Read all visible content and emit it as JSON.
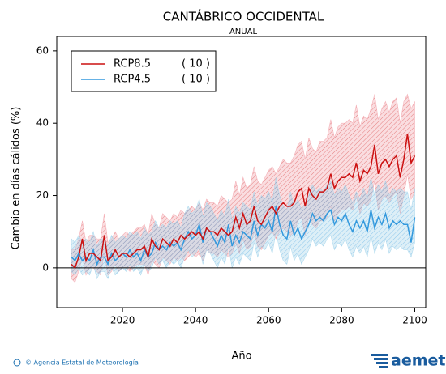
{
  "chart_data": {
    "type": "line",
    "title": "CANTÁBRICO OCCIDENTAL",
    "subtitle": "ANUAL",
    "xlabel": "Año",
    "ylabel": "Cambio en días cálidos (%)",
    "credit": "© Agencia Estatal de Meteorología",
    "logo": "aemet",
    "xlim": [
      2002,
      2103
    ],
    "xticks": [
      2020,
      2040,
      2060,
      2080,
      2100
    ],
    "ylim": [
      -11,
      64
    ],
    "yticks": [
      0,
      20,
      40,
      60
    ],
    "zero_line": true,
    "legend": "upper left",
    "x": [
      2006,
      2007,
      2008,
      2009,
      2010,
      2011,
      2012,
      2013,
      2014,
      2015,
      2016,
      2017,
      2018,
      2019,
      2020,
      2021,
      2022,
      2023,
      2024,
      2025,
      2026,
      2027,
      2028,
      2029,
      2030,
      2031,
      2032,
      2033,
      2034,
      2035,
      2036,
      2037,
      2038,
      2039,
      2040,
      2041,
      2042,
      2043,
      2044,
      2045,
      2046,
      2047,
      2048,
      2049,
      2050,
      2051,
      2052,
      2053,
      2054,
      2055,
      2056,
      2057,
      2058,
      2059,
      2060,
      2061,
      2062,
      2063,
      2064,
      2065,
      2066,
      2067,
      2068,
      2069,
      2070,
      2071,
      2072,
      2073,
      2074,
      2075,
      2076,
      2077,
      2078,
      2079,
      2080,
      2081,
      2082,
      2083,
      2084,
      2085,
      2086,
      2087,
      2088,
      2089,
      2090,
      2091,
      2092,
      2093,
      2094,
      2095,
      2096,
      2097,
      2098,
      2099,
      2100
    ],
    "series": [
      {
        "name": "RCP8.5",
        "count_label": "( 10 )",
        "color": "#cc1111",
        "band_color": "#f2a0a8",
        "values": [
          1,
          0,
          3,
          8,
          2,
          4,
          4,
          3,
          2,
          9,
          2,
          3,
          5,
          3,
          4,
          4,
          3,
          4,
          5,
          5,
          6,
          3,
          8,
          6,
          5,
          8,
          7,
          6,
          8,
          7,
          9,
          8,
          9,
          10,
          9,
          10,
          8,
          11,
          10,
          10,
          9,
          11,
          10,
          9,
          10,
          14,
          11,
          15,
          12,
          13,
          17,
          13,
          12,
          14,
          16,
          17,
          15,
          17,
          18,
          17,
          17,
          18,
          21,
          22,
          17,
          22,
          20,
          19,
          21,
          21,
          22,
          26,
          22,
          24,
          25,
          25,
          26,
          25,
          29,
          24,
          27,
          26,
          28,
          34,
          26,
          29,
          30,
          28,
          30,
          31,
          25,
          30,
          37,
          29,
          31
        ],
        "lower": [
          -3,
          -4,
          -1,
          3,
          -2,
          0,
          0,
          -1,
          -2,
          4,
          -2,
          -1,
          1,
          -1,
          0,
          0,
          -1,
          0,
          1,
          1,
          1,
          -2,
          2,
          1,
          0,
          3,
          2,
          1,
          3,
          2,
          3,
          2,
          3,
          4,
          3,
          4,
          2,
          5,
          4,
          4,
          3,
          5,
          4,
          3,
          4,
          7,
          4,
          8,
          5,
          6,
          10,
          6,
          5,
          7,
          9,
          10,
          8,
          10,
          11,
          10,
          9,
          10,
          13,
          14,
          9,
          14,
          12,
          11,
          13,
          13,
          14,
          17,
          13,
          15,
          16,
          16,
          17,
          16,
          20,
          15,
          18,
          17,
          19,
          24,
          16,
          19,
          20,
          18,
          20,
          21,
          15,
          20,
          26,
          19,
          21
        ],
        "upper": [
          5,
          5,
          8,
          13,
          7,
          9,
          9,
          8,
          8,
          15,
          7,
          8,
          10,
          8,
          9,
          10,
          9,
          10,
          11,
          11,
          12,
          9,
          15,
          12,
          11,
          15,
          14,
          13,
          15,
          14,
          16,
          15,
          16,
          17,
          16,
          18,
          16,
          19,
          18,
          18,
          17,
          20,
          19,
          18,
          19,
          24,
          20,
          25,
          22,
          23,
          28,
          24,
          23,
          25,
          27,
          28,
          26,
          28,
          30,
          29,
          29,
          31,
          34,
          35,
          30,
          36,
          33,
          32,
          35,
          35,
          36,
          41,
          36,
          39,
          40,
          40,
          41,
          40,
          45,
          39,
          42,
          41,
          44,
          48,
          41,
          44,
          46,
          43,
          46,
          47,
          40,
          46,
          48,
          44,
          46
        ]
      },
      {
        "name": "RCP4.5",
        "count_label": "( 10 )",
        "color": "#3399dd",
        "band_color": "#9fd2ea",
        "values": [
          3,
          2,
          4,
          2,
          3,
          2,
          5,
          1,
          3,
          3,
          1,
          4,
          2,
          3,
          4,
          3,
          5,
          3,
          4,
          2,
          5,
          3,
          4,
          7,
          5,
          6,
          5,
          7,
          6,
          7,
          5,
          8,
          10,
          8,
          9,
          12,
          7,
          11,
          10,
          8,
          6,
          9,
          7,
          12,
          6,
          9,
          7,
          10,
          9,
          8,
          13,
          9,
          12,
          11,
          13,
          10,
          17,
          12,
          9,
          8,
          13,
          9,
          11,
          8,
          10,
          12,
          15,
          13,
          14,
          13,
          15,
          16,
          12,
          14,
          13,
          15,
          12,
          10,
          13,
          11,
          13,
          10,
          16,
          11,
          14,
          12,
          15,
          11,
          13,
          12,
          13,
          12,
          12,
          7,
          14
        ],
        "lower": [
          -1,
          -2,
          0,
          -2,
          -1,
          -2,
          1,
          -3,
          -1,
          -1,
          -3,
          0,
          -2,
          -1,
          0,
          -1,
          1,
          -1,
          0,
          -2,
          1,
          -1,
          0,
          3,
          1,
          2,
          0,
          2,
          1,
          2,
          0,
          3,
          5,
          3,
          4,
          6,
          1,
          5,
          4,
          2,
          0,
          3,
          1,
          6,
          0,
          3,
          1,
          4,
          3,
          2,
          7,
          3,
          6,
          5,
          7,
          4,
          10,
          5,
          2,
          1,
          6,
          2,
          4,
          1,
          3,
          5,
          8,
          6,
          7,
          6,
          8,
          9,
          5,
          7,
          6,
          8,
          5,
          3,
          6,
          4,
          6,
          3,
          9,
          4,
          7,
          5,
          8,
          4,
          6,
          5,
          6,
          5,
          5,
          3,
          7
        ],
        "upper": [
          8,
          7,
          9,
          7,
          8,
          7,
          10,
          6,
          8,
          8,
          6,
          9,
          7,
          8,
          9,
          8,
          10,
          9,
          10,
          8,
          11,
          9,
          10,
          13,
          11,
          12,
          11,
          13,
          12,
          13,
          11,
          15,
          17,
          15,
          16,
          19,
          14,
          18,
          17,
          15,
          13,
          16,
          14,
          19,
          13,
          17,
          15,
          18,
          17,
          16,
          21,
          17,
          20,
          19,
          21,
          18,
          25,
          20,
          17,
          16,
          21,
          17,
          19,
          16,
          18,
          20,
          23,
          21,
          22,
          21,
          23,
          24,
          20,
          22,
          21,
          23,
          20,
          18,
          21,
          19,
          22,
          19,
          25,
          20,
          23,
          21,
          24,
          20,
          22,
          21,
          22,
          21,
          21,
          16,
          22
        ]
      }
    ]
  }
}
